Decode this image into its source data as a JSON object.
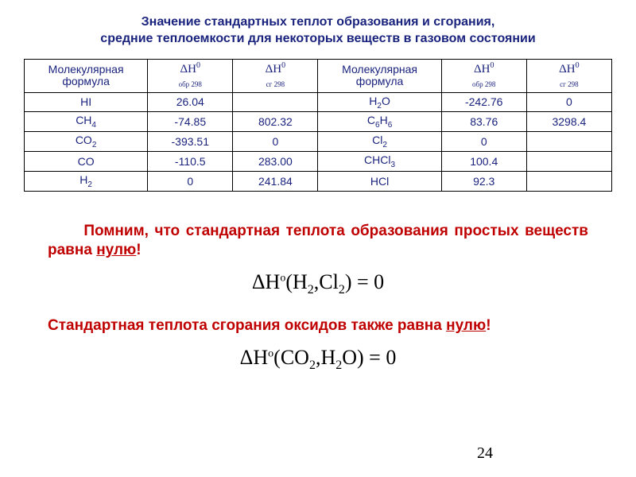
{
  "title": {
    "line1": "Значение стандартных теплот образования и сгорания,",
    "line2": "средние теплоемкости для некоторых веществ в газовом состоянии",
    "color": "#1a237e"
  },
  "table": {
    "border_color": "#000000",
    "text_color": "#1a237e",
    "headers": {
      "formula": "Молекулярная формула",
      "dh_form_html": "ΔH",
      "dh_form_sub": "обр 298",
      "dh_comb_sub": "сг 298"
    },
    "rows_left": [
      {
        "f": "HI",
        "sub": "",
        "a": "26.04",
        "b": ""
      },
      {
        "f": "CH",
        "sub": "4",
        "a": "-74.85",
        "b": "802.32"
      },
      {
        "f": "CO",
        "sub": "2",
        "a": "-393.51",
        "b": "0"
      },
      {
        "f": "CO",
        "sub": "",
        "a": "-110.5",
        "b": "283.00"
      },
      {
        "f": "H",
        "sub": "2",
        "a": "0",
        "b": "241.84"
      }
    ],
    "rows_right": [
      {
        "f": "H",
        "sub": "2",
        "f2": "O",
        "a": "-242.76",
        "b": "0"
      },
      {
        "f": "C",
        "sub": "6",
        "f2": "H",
        "sub2": "6",
        "a": "83.76",
        "b": "3298.4"
      },
      {
        "f": "Cl",
        "sub": "2",
        "f2": "",
        "a": "0",
        "b": ""
      },
      {
        "f": "CHCl",
        "sub": "3",
        "f2": "",
        "a": "100.4",
        "b": ""
      },
      {
        "f": "HCl",
        "sub": "",
        "f2": "",
        "a": "92.3",
        "b": ""
      }
    ]
  },
  "note1": {
    "text_pre": "Помним, что стандартная теплота образования простых веществ равна ",
    "text_u": "нулю",
    "text_post": "!",
    "color": "#c00000"
  },
  "eq1": {
    "text": "ΔH°(H₂,Cl₂) = 0"
  },
  "note2": {
    "text_pre": "Стандартная теплота сгорания оксидов также равна ",
    "text_u": "нулю",
    "text_post": "!",
    "color": "#c00000"
  },
  "eq2": {
    "text": "ΔH°(CO₂,H₂O) = 0"
  },
  "pagenum": "24"
}
